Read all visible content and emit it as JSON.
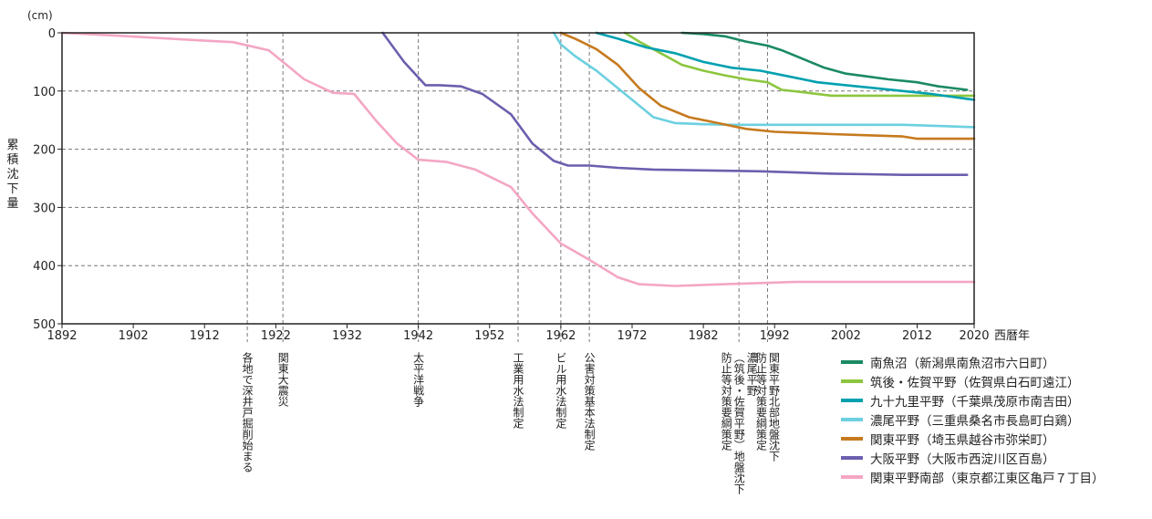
{
  "chart_data": {
    "type": "line",
    "unit_label": "(cm)",
    "ylabel": "累積沈下量",
    "xlabel": "西暦年",
    "xlim": [
      1892,
      2020
    ],
    "ylim": [
      0,
      500
    ],
    "y_inverted": true,
    "x_ticks": [
      1892,
      1902,
      1912,
      1922,
      1932,
      1942,
      1952,
      1962,
      1972,
      1982,
      1992,
      2002,
      2012,
      2020
    ],
    "y_ticks": [
      0,
      100,
      200,
      300,
      400,
      500
    ],
    "grid": "horizontal dashed",
    "legend_position": "bottom-right",
    "events": [
      {
        "year": 1918,
        "label": "各地で深井戸掘削始まる"
      },
      {
        "year": 1923,
        "label": "関東大震災"
      },
      {
        "year": 1942,
        "label": "太平洋戦争"
      },
      {
        "year": 1956,
        "label": "工業用水法制定"
      },
      {
        "year": 1962,
        "label": "ビル用水法制定"
      },
      {
        "year": 1966,
        "label": "公害対策基本法制定"
      },
      {
        "year": 1987,
        "label": "濃尾平野\n（筑後・佐賀平野）地盤沈下\n防止等対策要綱策定"
      },
      {
        "year": 1991,
        "label": "関東平野北部地盤沈下\n防止等対策要綱策定"
      }
    ],
    "series": [
      {
        "name": "南魚沼（新潟県南魚沼市六日町）",
        "color": "#1a8a62",
        "x": [
          1979,
          1982,
          1985,
          1988,
          1991,
          1993,
          1996,
          1999,
          2002,
          2005,
          2008,
          2012,
          2015,
          2019
        ],
        "y": [
          0,
          2,
          6,
          15,
          22,
          30,
          45,
          60,
          70,
          75,
          80,
          85,
          92,
          98
        ]
      },
      {
        "name": "筑後・佐賀平野（佐賀県白石町遠江）",
        "color": "#8cc63f",
        "x": [
          1971,
          1973,
          1976,
          1979,
          1982,
          1985,
          1988,
          1991,
          1993,
          1996,
          2000,
          2005,
          2010,
          2015,
          2020
        ],
        "y": [
          0,
          15,
          35,
          55,
          65,
          73,
          80,
          85,
          98,
          102,
          108,
          108,
          108,
          108,
          108
        ]
      },
      {
        "name": "九十九里平野（千葉県茂原市南吉田）",
        "color": "#00a0b0",
        "x": [
          1967,
          1970,
          1974,
          1978,
          1982,
          1986,
          1990,
          1994,
          1998,
          2002,
          2006,
          2010,
          2014,
          2020
        ],
        "y": [
          0,
          10,
          25,
          35,
          50,
          60,
          65,
          75,
          85,
          90,
          95,
          100,
          105,
          115
        ]
      },
      {
        "name": "濃尾平野（三重県桑名市長島町白鶏）",
        "color": "#6cd0e0",
        "x": [
          1961,
          1962,
          1964,
          1967,
          1970,
          1973,
          1975,
          1978,
          1982,
          1986,
          1990,
          1995,
          2000,
          2005,
          2010,
          2015,
          2020
        ],
        "y": [
          0,
          20,
          40,
          65,
          95,
          125,
          145,
          155,
          157,
          158,
          158,
          158,
          158,
          158,
          158,
          160,
          162
        ]
      },
      {
        "name": "関東平野（埼玉県越谷市弥栄町）",
        "color": "#c67a1e",
        "x": [
          1962,
          1964,
          1967,
          1970,
          1973,
          1976,
          1980,
          1984,
          1988,
          1992,
          1996,
          2000,
          2005,
          2010,
          2012,
          2015,
          2020
        ],
        "y": [
          0,
          10,
          28,
          55,
          95,
          125,
          145,
          155,
          165,
          170,
          172,
          174,
          176,
          178,
          182,
          182,
          182
        ]
      },
      {
        "name": "大阪平野（大阪市西淀川区百島）",
        "color": "#6b5fae",
        "x": [
          1937,
          1940,
          1943,
          1945,
          1948,
          1951,
          1955,
          1958,
          1961,
          1963,
          1966,
          1970,
          1975,
          1980,
          1985,
          1990,
          1995,
          2000,
          2005,
          2010,
          2015,
          2019
        ],
        "y": [
          0,
          50,
          90,
          90,
          92,
          105,
          140,
          190,
          220,
          228,
          228,
          232,
          235,
          236,
          237,
          238,
          240,
          242,
          243,
          244,
          244,
          244
        ]
      },
      {
        "name": "関東平野南部（東京都江東区亀戸７丁目）",
        "color": "#f4a6c4",
        "x": [
          1892,
          1900,
          1910,
          1916,
          1921,
          1926,
          1930,
          1933,
          1936,
          1939,
          1942,
          1946,
          1950,
          1955,
          1958,
          1962,
          1966,
          1970,
          1973,
          1978,
          1985,
          1995,
          2005,
          2010,
          2020
        ],
        "y": [
          0,
          5,
          12,
          16,
          30,
          80,
          103,
          105,
          150,
          190,
          218,
          222,
          235,
          265,
          310,
          362,
          390,
          420,
          432,
          435,
          432,
          428,
          428,
          428,
          428
        ]
      }
    ]
  }
}
